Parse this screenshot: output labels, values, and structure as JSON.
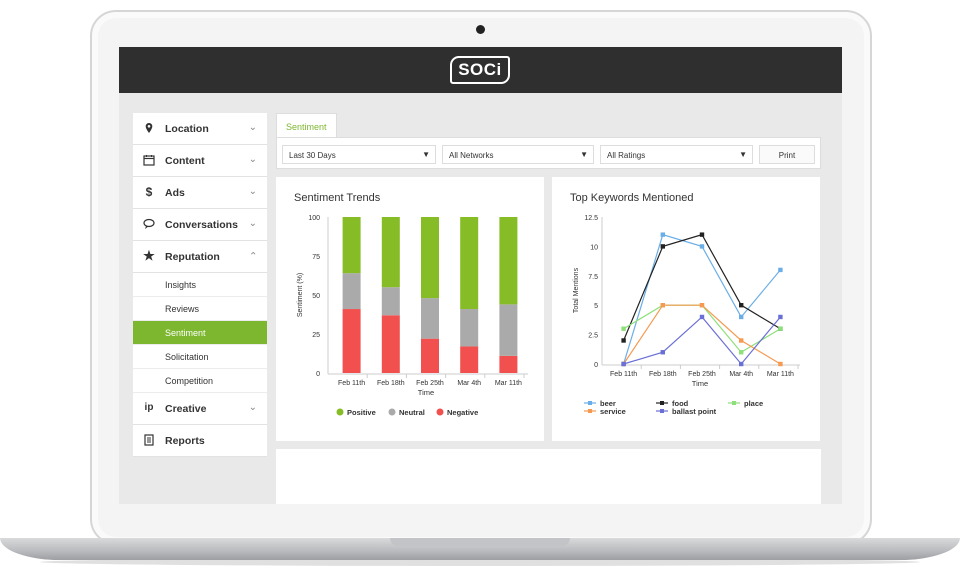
{
  "app": {
    "logo_text": "SOCi"
  },
  "sidebar": {
    "items": [
      {
        "label": "Location",
        "icon": "map-pin-icon"
      },
      {
        "label": "Content",
        "icon": "calendar-icon"
      },
      {
        "label": "Ads",
        "icon": "dollar-icon"
      },
      {
        "label": "Conversations",
        "icon": "chat-icon"
      },
      {
        "label": "Reputation",
        "icon": "star-icon"
      }
    ],
    "sub_items": [
      {
        "label": "Insights"
      },
      {
        "label": "Reviews"
      },
      {
        "label": "Sentiment",
        "active": true
      },
      {
        "label": "Solicitation"
      },
      {
        "label": "Competition"
      }
    ],
    "items_after": [
      {
        "label": "Creative",
        "icon": "creative-icon"
      },
      {
        "label": "Reports",
        "icon": "report-icon"
      }
    ]
  },
  "main": {
    "tab_label": "Sentiment",
    "filters": {
      "date_range": "Last 30 Days",
      "networks": "All Networks",
      "ratings": "All Ratings",
      "print_label": "Print"
    }
  },
  "colors": {
    "accent": "#7db72f",
    "positive": "#86bc25",
    "neutral": "#aaaaaa",
    "negative": "#f24f4f"
  },
  "chart_data": [
    {
      "type": "bar",
      "stacked": true,
      "title": "Sentiment Trends",
      "xlabel": "Time",
      "ylabel": "Sentiment (%)",
      "ylim": [
        0,
        100
      ],
      "yticks": [
        "0",
        "25",
        "50",
        "75",
        "100"
      ],
      "categories": [
        "Feb 11th",
        "Feb 18th",
        "Feb 25th",
        "Mar 4th",
        "Mar 11th"
      ],
      "series": [
        {
          "name": "Negative",
          "values": [
            41,
            37,
            22,
            17,
            11
          ]
        },
        {
          "name": "Neutral",
          "values": [
            23,
            18,
            26,
            24,
            33
          ]
        },
        {
          "name": "Positive",
          "values": [
            36,
            45,
            52,
            59,
            56
          ]
        }
      ],
      "legend_position": "bottom"
    },
    {
      "type": "line",
      "title": "Top Keywords Mentioned",
      "xlabel": "Time",
      "ylabel": "Total Mentions",
      "ylim": [
        0,
        12.5
      ],
      "yticks": [
        "0",
        "2.5",
        "5",
        "7.5",
        "10",
        "12.5"
      ],
      "categories": [
        "Feb 11th",
        "Feb 18th",
        "Feb 25th",
        "Mar 4th",
        "Mar 11th"
      ],
      "series": [
        {
          "name": "beer",
          "color": "#6aaee8",
          "values": [
            0,
            11,
            10,
            4,
            8
          ]
        },
        {
          "name": "food",
          "color": "#222222",
          "values": [
            2,
            10,
            11,
            5,
            3
          ]
        },
        {
          "name": "place",
          "color": "#8ee07a",
          "values": [
            3,
            5,
            5,
            1,
            3
          ]
        },
        {
          "name": "service",
          "color": "#f59a50",
          "values": [
            0,
            5,
            5,
            2,
            0
          ]
        },
        {
          "name": "ballast point",
          "color": "#6a6fd6",
          "values": [
            0,
            1,
            4,
            0,
            4
          ]
        }
      ],
      "legend_position": "bottom"
    }
  ]
}
